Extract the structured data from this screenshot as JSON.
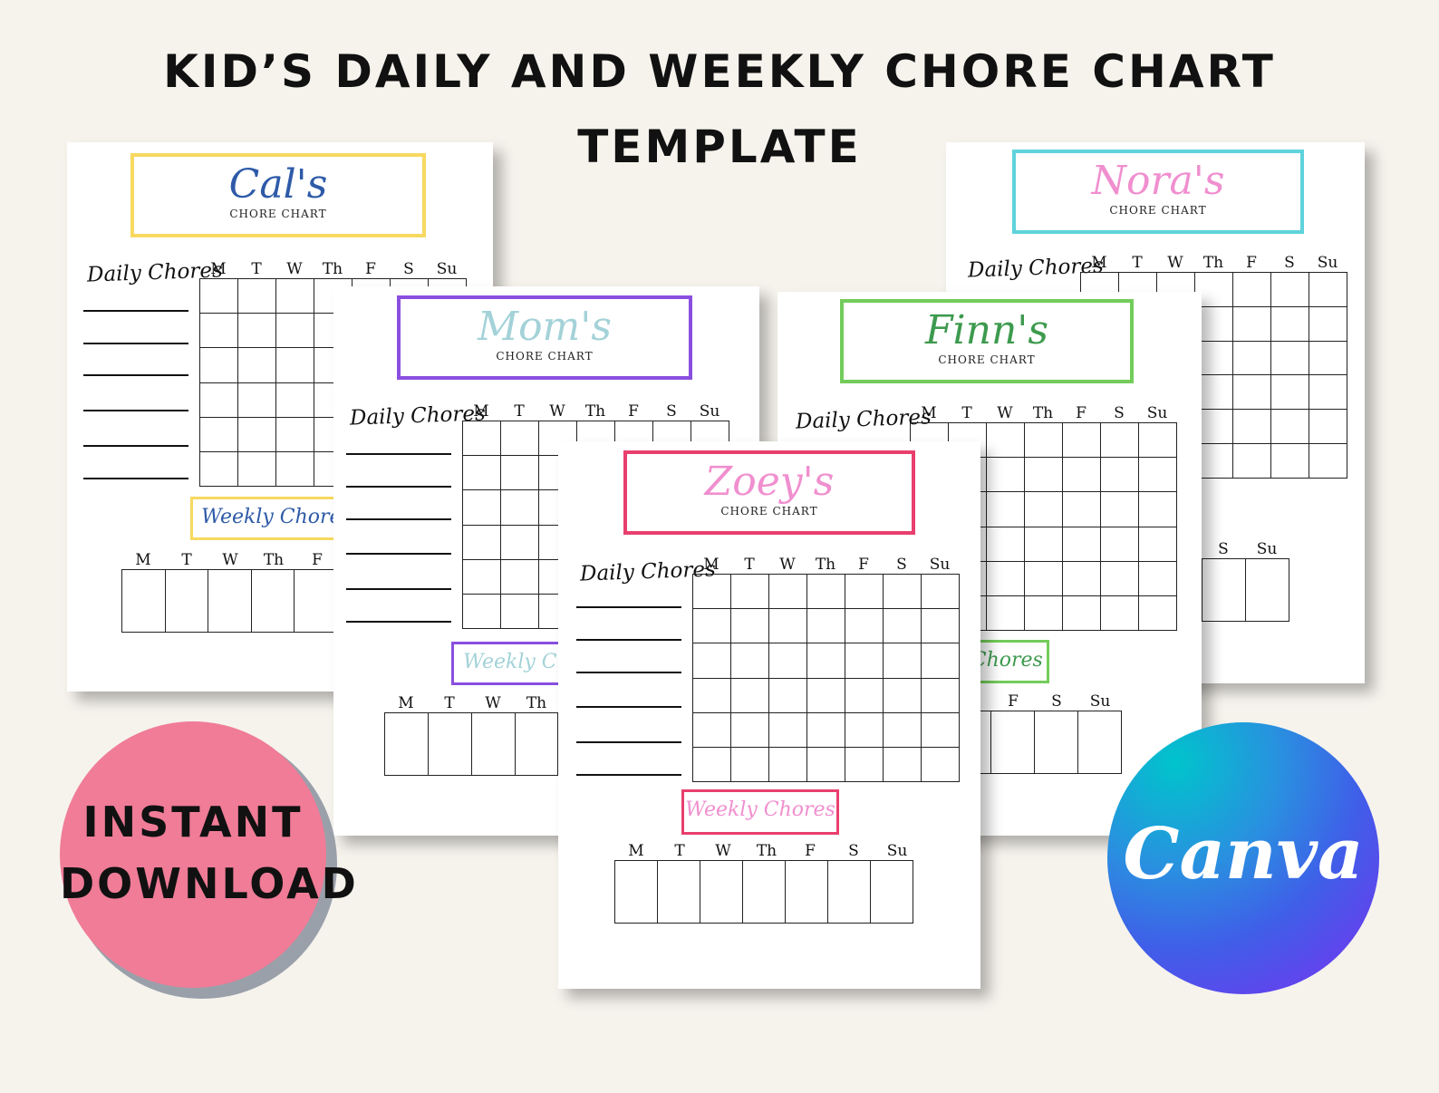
{
  "title": {
    "line1": "Kid’s Daily and Weekly Chore Chart",
    "line2": "Template"
  },
  "common": {
    "chore_chart": "CHORE CHART",
    "daily_chores": "Daily Chores",
    "weekly_chores": "Weekly Chores",
    "days": [
      "M",
      "T",
      "W",
      "Th",
      "F",
      "S",
      "Su"
    ]
  },
  "sheets": {
    "cal": {
      "name": "Cal's",
      "color": "#f7d960",
      "name_color": "#2e5aa8"
    },
    "nora": {
      "name": "Nora's",
      "color": "#5fd3dc",
      "name_color": "#f08fcf"
    },
    "mom": {
      "name": "Mom's",
      "color": "#8a4fe0",
      "name_color": "#a3d2d8"
    },
    "finn": {
      "name": "Finn's",
      "color": "#73cc5a",
      "name_color": "#3d9a4e"
    },
    "zoey": {
      "name": "Zoey's",
      "color": "#e83f6e",
      "name_color": "#f08fcf"
    }
  },
  "badges": {
    "instant_line1": "Instant",
    "instant_line2": "Download",
    "instant_color": "#f07c97",
    "canva": "Canva",
    "canva_gradient": [
      "#00c4cc",
      "#3f5fe8",
      "#7b2ff2"
    ]
  }
}
